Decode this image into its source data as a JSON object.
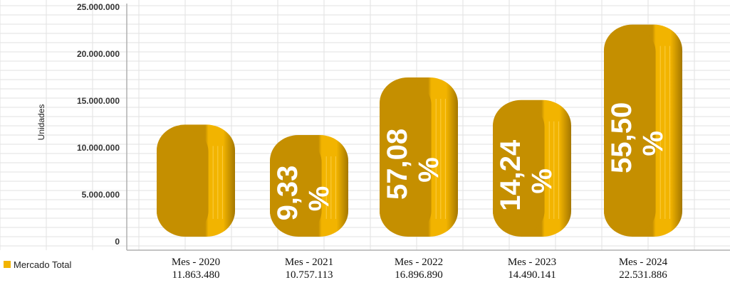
{
  "chart_data": {
    "type": "bar",
    "ylabel": "Unidades",
    "ylim": [
      0,
      25000000
    ],
    "y_ticks": [
      "25.000.000",
      "20.000.000",
      "15.000.000",
      "10.000.000",
      "5.000.000",
      "0"
    ],
    "y_tick_values": [
      25000000,
      20000000,
      15000000,
      10000000,
      5000000,
      0
    ],
    "categories": [
      "Mes - 2020",
      "Mes - 2021",
      "Mes - 2022",
      "Mes - 2023",
      "Mes - 2024"
    ],
    "value_labels": [
      "11.863.480",
      "10.757.113",
      "16.896.890",
      "14.490.141",
      "22.531.886"
    ],
    "series": [
      {
        "name": "Mercado Total",
        "values": [
          11863480,
          10757113,
          16896890,
          14490141,
          22531886
        ]
      }
    ],
    "growth_labels": [
      {
        "num": "",
        "pct": ""
      },
      {
        "num": "9,33",
        "pct": "%"
      },
      {
        "num": "57,08",
        "pct": "%"
      },
      {
        "num": "14,24",
        "pct": "%"
      },
      {
        "num": "55,50",
        "pct": "%"
      }
    ],
    "grid": true,
    "legend_position": "bottom-left"
  },
  "colors": {
    "bar_main": "#c58f00",
    "bar_light": "#f2b400",
    "bar_dark": "#a47700",
    "grid": "#e2e2e2",
    "axis": "#b0b0b0"
  }
}
